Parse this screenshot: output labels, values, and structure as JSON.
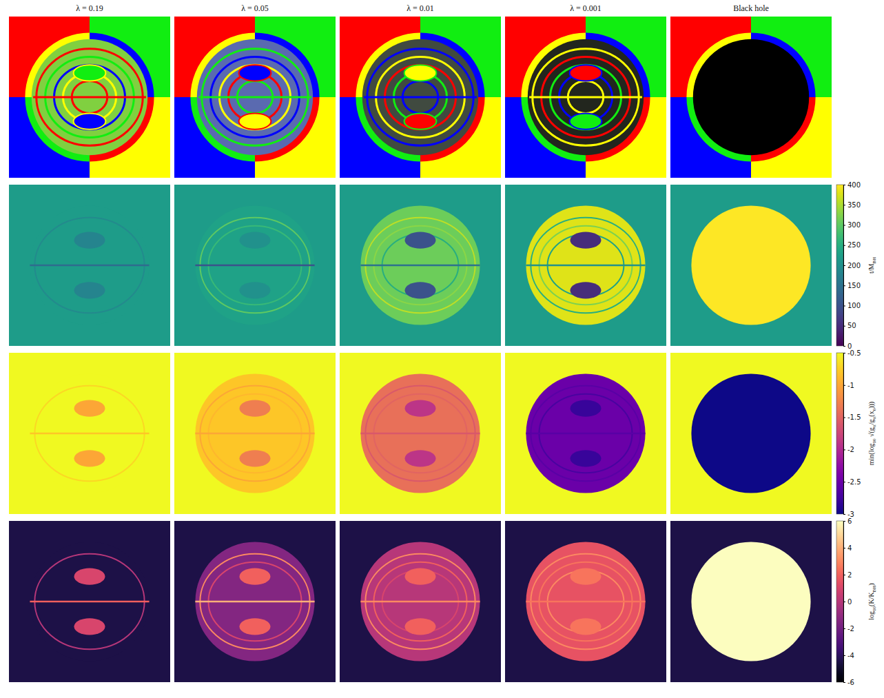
{
  "chart_data": {
    "type": "image_grid",
    "columns": [
      "λ = 0.19",
      "λ = 0.05",
      "λ = 0.01",
      "λ = 0.001",
      "Black hole"
    ],
    "rows": [
      {
        "type": "quadrant_image",
        "colors": [
          "#ff0000",
          "#11ee11",
          "#0000ff",
          "#ffff00"
        ],
        "panels": [
          {
            "color": "#80d040"
          },
          {
            "color": "#5a6ab0"
          },
          {
            "color": "#404a40"
          },
          {
            "color": "#22261e"
          },
          {
            "color": "#000000"
          }
        ]
      },
      {
        "type": "heatmap",
        "color": "viridis",
        "colorbar": {
          "label": [
            {
              "text": "t/M"
            },
            {
              "text": "BH",
              "sub": true
            }
          ],
          "lim": [
            0,
            400
          ],
          "ticks": [
            0,
            50,
            100,
            150,
            200,
            250,
            300,
            350,
            400
          ]
        },
        "panels": [
          {
            "background": 220,
            "disk": 220,
            "rings": [
              190
            ],
            "islands": 180,
            "equator": 140
          },
          {
            "background": 220,
            "disk": 230,
            "rings": [
              300,
              270
            ],
            "islands": 200,
            "equator": 100
          },
          {
            "background": 220,
            "disk": 310,
            "rings": [
              360,
              330,
              250
            ],
            "islands": 100,
            "equator": 150
          },
          {
            "background": 220,
            "disk": 380,
            "rings": [
              250,
              320,
              230
            ],
            "islands": 50,
            "equator": 200
          },
          {
            "background": 220,
            "disk": 400
          }
        ]
      },
      {
        "type": "heatmap",
        "color": "plasma",
        "colorbar": {
          "label": [
            {
              "text": "min(log"
            },
            {
              "text": "10",
              "sub": true
            },
            {
              "text": " √(g"
            },
            {
              "text": "tt",
              "sub": true
            },
            {
              "text": "/g"
            },
            {
              "text": "tt",
              "sub": true
            },
            {
              "text": "(x"
            },
            {
              "text": "0",
              "sub": true
            },
            {
              "text": ")))"
            }
          ],
          "lim": [
            -3,
            -0.5
          ],
          "ticks": [
            -0.5,
            -1,
            -1.5,
            -2,
            -2.5,
            -3
          ]
        },
        "panels": [
          {
            "background": -0.5,
            "disk": -0.5,
            "rings": [
              -0.7
            ],
            "islands": -1.0,
            "equator": -0.8
          },
          {
            "background": -0.5,
            "disk": -0.8,
            "rings": [
              -1.0,
              -0.9
            ],
            "islands": -1.3,
            "equator": -1.0
          },
          {
            "background": -0.5,
            "disk": -1.4,
            "rings": [
              -1.6,
              -1.5
            ],
            "islands": -1.9,
            "equator": -1.6
          },
          {
            "background": -0.5,
            "disk": -2.5,
            "rings": [
              -2.6,
              -2.7
            ],
            "islands": -2.8,
            "equator": -2.6
          },
          {
            "background": -0.5,
            "disk": -3
          }
        ]
      },
      {
        "type": "heatmap",
        "color": "magma",
        "colorbar": {
          "label": [
            {
              "text": "log"
            },
            {
              "text": "10",
              "sub": true
            },
            {
              "text": "(K/K"
            },
            {
              "text": "BH",
              "sub": true
            },
            {
              "text": ")"
            }
          ],
          "lim": [
            -6,
            6
          ],
          "ticks": [
            -6,
            -4,
            -2,
            0,
            2,
            4,
            6
          ]
        },
        "panels": [
          {
            "background": -4.5,
            "disk": -4.5,
            "rings": [
              0
            ],
            "islands": 1,
            "equator": 2
          },
          {
            "background": -4.5,
            "disk": -1.5,
            "rings": [
              3,
              1
            ],
            "islands": 2,
            "equator": 4
          },
          {
            "background": -4.5,
            "disk": 0,
            "rings": [
              3,
              2,
              1
            ],
            "islands": 2,
            "equator": 3
          },
          {
            "background": -4.5,
            "disk": 1.5,
            "rings": [
              3,
              2.5,
              3
            ],
            "islands": 2.5,
            "equator": 2.5
          },
          {
            "background": -4.5,
            "disk": 6
          }
        ]
      }
    ]
  }
}
